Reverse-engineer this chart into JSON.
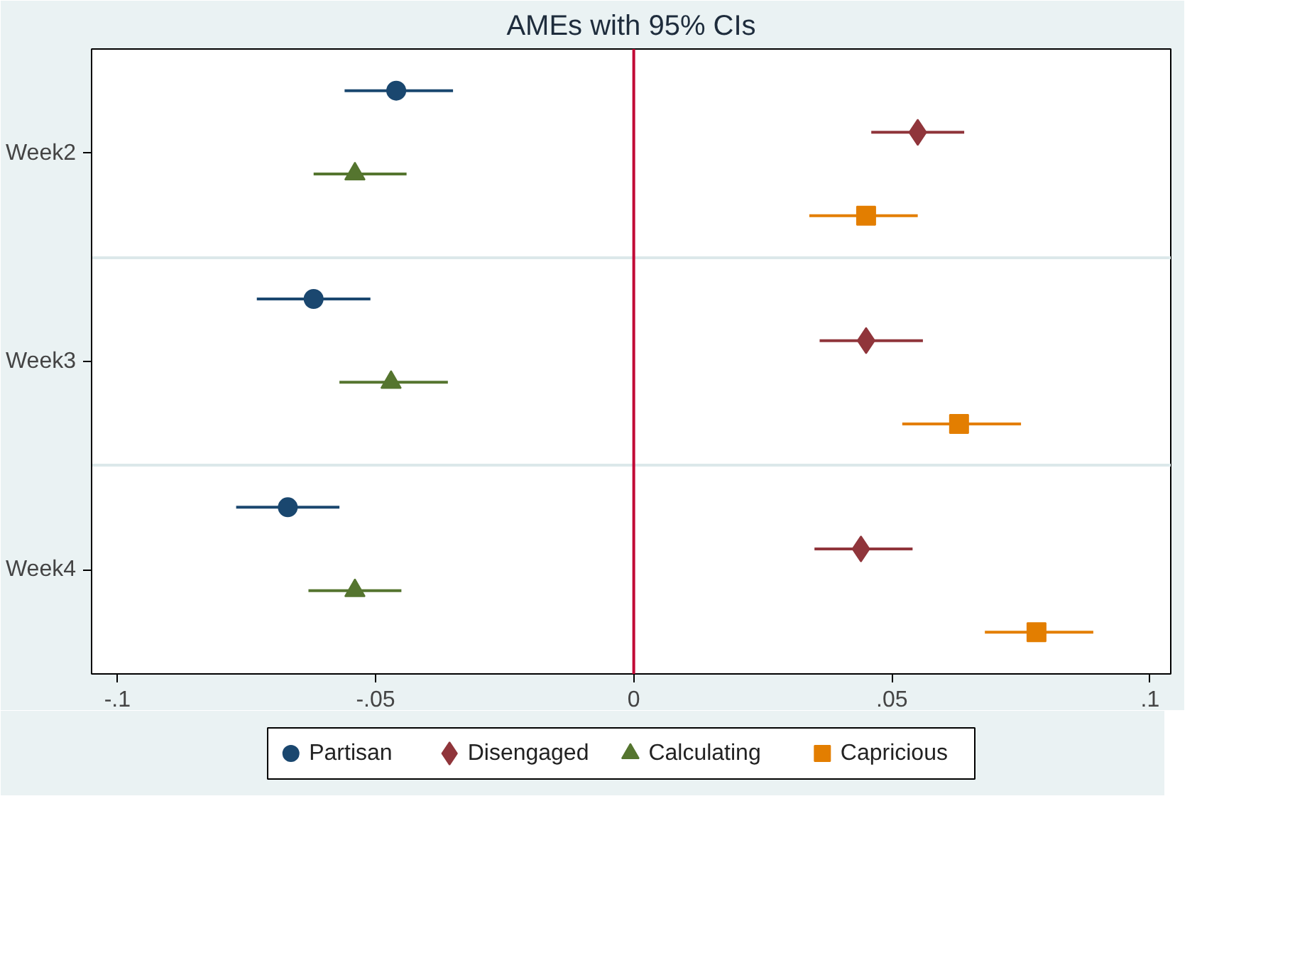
{
  "chart_data": {
    "type": "scatter",
    "orientation": "horizontal",
    "title": "AMEs with 95% CIs",
    "categories": [
      "Week2",
      "Week3",
      "Week4"
    ],
    "series": [
      {
        "name": "Partisan",
        "color": "#1a476f",
        "marker": "circle",
        "values": [
          -0.046,
          -0.062,
          -0.067
        ],
        "errors": [
          [
            -0.056,
            -0.035
          ],
          [
            -0.073,
            -0.051
          ],
          [
            -0.077,
            -0.057
          ]
        ]
      },
      {
        "name": "Disengaged",
        "color": "#90353b",
        "marker": "diamond",
        "values": [
          0.055,
          0.045,
          0.044
        ],
        "errors": [
          [
            0.046,
            0.064
          ],
          [
            0.036,
            0.056
          ],
          [
            0.035,
            0.054
          ]
        ]
      },
      {
        "name": "Calculating",
        "color": "#55752f",
        "marker": "triangle",
        "values": [
          -0.054,
          -0.047,
          -0.054
        ],
        "errors": [
          [
            -0.062,
            -0.044
          ],
          [
            -0.057,
            -0.036
          ],
          [
            -0.063,
            -0.045
          ]
        ]
      },
      {
        "name": "Capricious",
        "color": "#e37e00",
        "marker": "square",
        "values": [
          0.045,
          0.063,
          0.078
        ],
        "errors": [
          [
            0.034,
            0.055
          ],
          [
            0.052,
            0.075
          ],
          [
            0.068,
            0.089
          ]
        ]
      }
    ],
    "xlim": [
      -0.105,
      0.104
    ],
    "xticks": [
      {
        "value": -0.1,
        "label": "-.1"
      },
      {
        "value": -0.05,
        "label": "-.05"
      },
      {
        "value": 0,
        "label": "0"
      },
      {
        "value": 0.05,
        "label": ".05"
      },
      {
        "value": 0.1,
        "label": ".1"
      }
    ],
    "ref_lines": [
      {
        "axis": "x",
        "value": 0,
        "color": "#c10534"
      }
    ],
    "grid": "y",
    "legend": "bottom"
  }
}
